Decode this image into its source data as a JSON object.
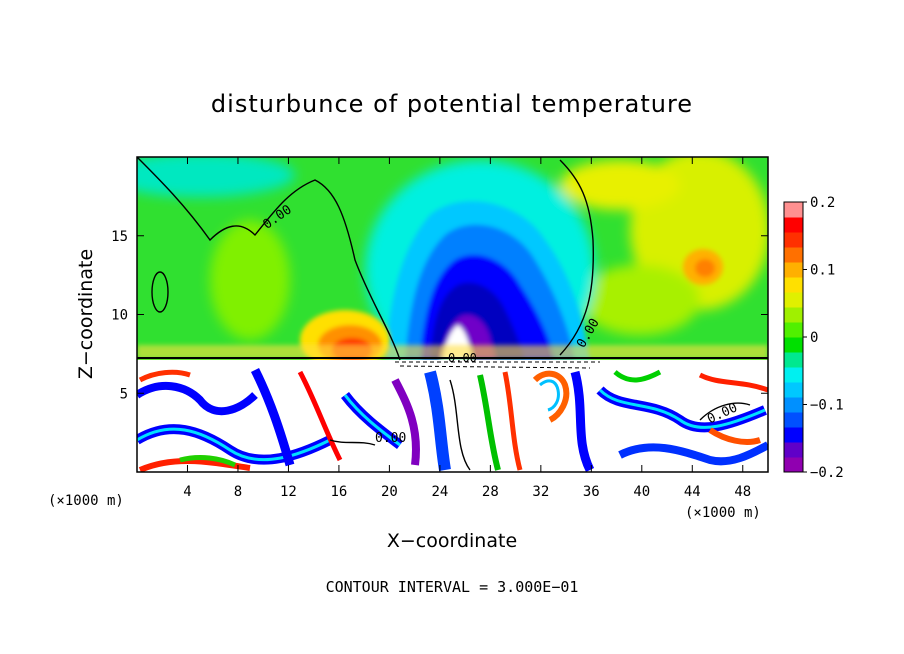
{
  "chart_data": {
    "type": "heatmap",
    "title": "disturbunce of potential temperature",
    "xlabel": "X−coordinate",
    "ylabel": "Z−coordinate",
    "x_unit": "(×1000 m)",
    "x_unit_right": "(×1000 m)",
    "xlim": [
      0,
      50
    ],
    "ylim": [
      0,
      20
    ],
    "x_ticks": [
      4,
      8,
      12,
      16,
      20,
      24,
      28,
      32,
      36,
      40,
      44,
      48
    ],
    "y_ticks": [
      5,
      10,
      15
    ],
    "colorbar": {
      "range": [
        -0.2,
        0.2
      ],
      "ticks": [
        0.2,
        0.1,
        0,
        -0.1,
        -0.2
      ],
      "tick_labels": [
        "0.2",
        "0.1",
        "0",
        "−0.1",
        "−0.2"
      ],
      "colors": [
        "#9000b0",
        "#6000c8",
        "#0000ff",
        "#0050ff",
        "#0090ff",
        "#00c8ff",
        "#00f0f0",
        "#00e890",
        "#00e000",
        "#50f000",
        "#a0f000",
        "#e0f000",
        "#ffe000",
        "#ffb000",
        "#ff7000",
        "#ff3000",
        "#ff0000",
        "#ff9090"
      ]
    },
    "contour_labels": [
      "0.00",
      "0.00",
      "0.00",
      "0.00",
      "0.00"
    ],
    "footer": "CONTOUR INTERVAL = 3.000E−01",
    "surface_height": 7.2,
    "features": [
      {
        "kind": "negative-anomaly",
        "x": 26,
        "z": 12.5,
        "value": -0.18
      },
      {
        "kind": "negative-anomaly",
        "x": 29,
        "z": 9,
        "value": -0.15
      },
      {
        "kind": "positive-anomaly",
        "x": 17.5,
        "z": 8.5,
        "value": 0.12
      },
      {
        "kind": "positive-anomaly",
        "x": 44,
        "z": 13,
        "value": 0.12
      },
      {
        "kind": "warm-region",
        "x": 42,
        "z": 16,
        "value": 0.07
      }
    ]
  },
  "colors": {
    "background": "#ffffff",
    "frame": "#000000",
    "ambient": "#30e030"
  }
}
